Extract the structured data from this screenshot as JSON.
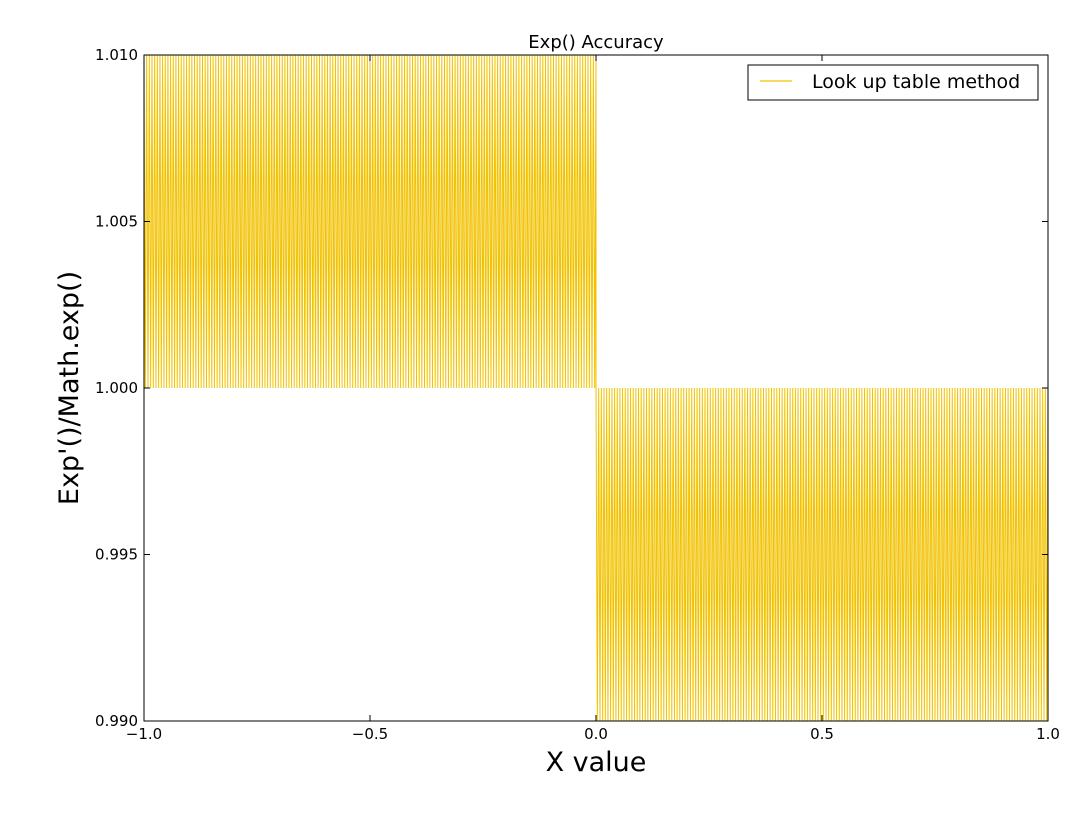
{
  "chart_data": {
    "type": "line",
    "title": "Exp() Accuracy",
    "xlabel": "X value",
    "ylabel": "Exp'()/Math.exp()",
    "xlim": [
      -1.0,
      1.0
    ],
    "ylim": [
      0.99,
      1.01
    ],
    "x_ticks": [
      -1.0,
      -0.5,
      0.0,
      0.5,
      1.0
    ],
    "x_tick_labels": [
      "−1.0",
      "−0.5",
      "0.0",
      "0.5",
      "1.0"
    ],
    "y_ticks": [
      0.99,
      0.995,
      1.0,
      1.005,
      1.01
    ],
    "y_tick_labels": [
      "0.990",
      "0.995",
      "1.000",
      "1.005",
      "1.010"
    ],
    "grid": false,
    "legend_position": "top-right",
    "series": [
      {
        "name": "Look up table method",
        "color": "#f2c200",
        "segments": [
          {
            "x_start": -1.0,
            "x_end": 0.0,
            "y_low": 1.0,
            "y_high": 1.01,
            "cycles": 170
          },
          {
            "x_start": 0.0,
            "x_end": 1.0,
            "y_low": 0.99,
            "y_high": 1.0,
            "cycles": 170
          }
        ]
      }
    ]
  }
}
